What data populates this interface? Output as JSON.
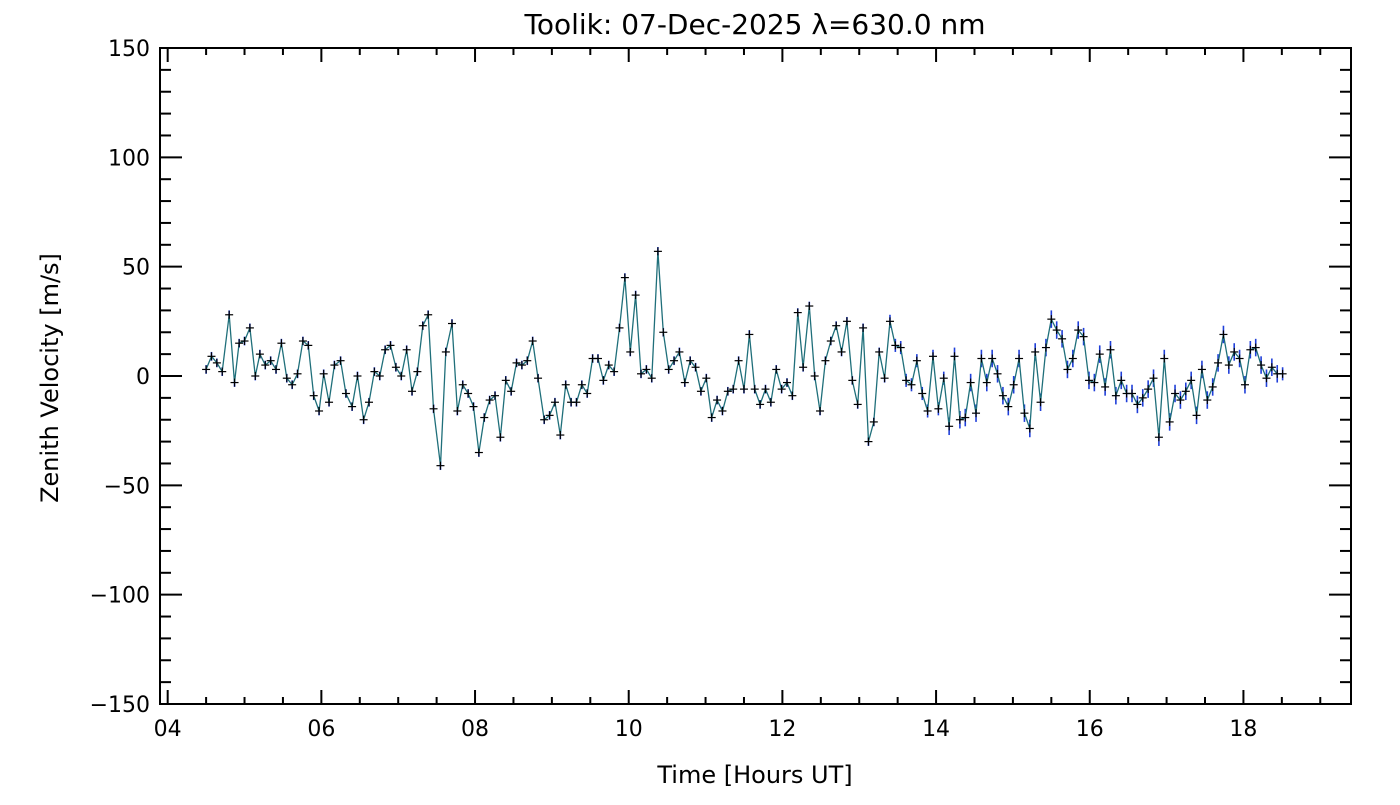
{
  "chart_data": {
    "type": "line",
    "title": "Toolik: 07-Dec-2025 λ=630.0 nm",
    "xlabel": "Time [Hours UT]",
    "ylabel": "Zenith Velocity [m/s]",
    "xlim": [
      3.9,
      19.4
    ],
    "ylim": [
      -150,
      150
    ],
    "x_ticks": [
      4,
      6,
      8,
      10,
      12,
      14,
      16,
      18
    ],
    "x_tick_labels": [
      "04",
      "06",
      "08",
      "10",
      "12",
      "14",
      "16",
      "18"
    ],
    "y_ticks": [
      -150,
      -100,
      -50,
      0,
      50,
      100,
      150
    ],
    "y_tick_labels": [
      "−150",
      "−100",
      "−50",
      "0",
      "50",
      "100",
      "150"
    ],
    "x_minor_step": 0.5,
    "y_minor_step": 10,
    "grid": false,
    "legend": null,
    "colors": {
      "line": "#1f6f7a",
      "markers": "#000000",
      "errors": "#1f3fd9",
      "axes": "#000000"
    },
    "series": [
      {
        "name": "Zenith velocity",
        "values_note": "x in hours UT, y in m/s, err in m/s",
        "points": [
          [
            4.5,
            3,
            2
          ],
          [
            4.57,
            9,
            2
          ],
          [
            4.64,
            6,
            2
          ],
          [
            4.71,
            2,
            2
          ],
          [
            4.8,
            28,
            2
          ],
          [
            4.87,
            -3,
            2
          ],
          [
            4.93,
            15,
            2
          ],
          [
            5.0,
            16,
            2
          ],
          [
            5.07,
            22,
            2
          ],
          [
            5.14,
            0,
            2
          ],
          [
            5.2,
            10,
            2
          ],
          [
            5.27,
            5,
            2
          ],
          [
            5.34,
            7,
            2
          ],
          [
            5.41,
            3,
            2
          ],
          [
            5.48,
            15,
            2
          ],
          [
            5.55,
            -1,
            2
          ],
          [
            5.62,
            -4,
            2
          ],
          [
            5.69,
            1,
            2
          ],
          [
            5.76,
            16,
            2
          ],
          [
            5.83,
            14,
            2
          ],
          [
            5.9,
            -9,
            2
          ],
          [
            5.97,
            -16,
            2
          ],
          [
            6.03,
            1,
            2
          ],
          [
            6.1,
            -12,
            2
          ],
          [
            6.17,
            5,
            2
          ],
          [
            6.25,
            7,
            2
          ],
          [
            6.32,
            -8,
            2
          ],
          [
            6.4,
            -14,
            2
          ],
          [
            6.47,
            0,
            2
          ],
          [
            6.55,
            -20,
            2
          ],
          [
            6.62,
            -12,
            2
          ],
          [
            6.69,
            2,
            2
          ],
          [
            6.76,
            0,
            2
          ],
          [
            6.83,
            12,
            2
          ],
          [
            6.9,
            14,
            2
          ],
          [
            6.97,
            4,
            2
          ],
          [
            7.04,
            0,
            2
          ],
          [
            7.11,
            12,
            2
          ],
          [
            7.18,
            -7,
            2
          ],
          [
            7.25,
            2,
            2
          ],
          [
            7.32,
            23,
            2
          ],
          [
            7.39,
            28,
            2
          ],
          [
            7.46,
            -15,
            2
          ],
          [
            7.55,
            -41,
            2
          ],
          [
            7.62,
            11,
            2
          ],
          [
            7.7,
            24,
            2
          ],
          [
            7.77,
            -16,
            2
          ],
          [
            7.84,
            -4,
            2
          ],
          [
            7.91,
            -8,
            2
          ],
          [
            7.98,
            -14,
            2
          ],
          [
            8.05,
            -35,
            2
          ],
          [
            8.12,
            -19,
            2
          ],
          [
            8.19,
            -11,
            2
          ],
          [
            8.26,
            -9,
            2
          ],
          [
            8.33,
            -28,
            2
          ],
          [
            8.4,
            -2,
            2
          ],
          [
            8.47,
            -7,
            2
          ],
          [
            8.54,
            6,
            2
          ],
          [
            8.61,
            5,
            2
          ],
          [
            8.68,
            7,
            2
          ],
          [
            8.75,
            16,
            2
          ],
          [
            8.82,
            -1,
            2
          ],
          [
            8.9,
            -20,
            2
          ],
          [
            8.97,
            -18,
            2
          ],
          [
            9.04,
            -12,
            2
          ],
          [
            9.11,
            -27,
            2
          ],
          [
            9.18,
            -4,
            2
          ],
          [
            9.25,
            -12,
            2
          ],
          [
            9.32,
            -12,
            2
          ],
          [
            9.39,
            -4,
            2
          ],
          [
            9.46,
            -8,
            2
          ],
          [
            9.53,
            8,
            2
          ],
          [
            9.6,
            8,
            2
          ],
          [
            9.67,
            -2,
            2
          ],
          [
            9.74,
            5,
            2
          ],
          [
            9.81,
            2,
            2
          ],
          [
            9.88,
            22,
            2
          ],
          [
            9.95,
            45,
            2
          ],
          [
            10.02,
            11,
            2
          ],
          [
            10.09,
            37,
            2
          ],
          [
            10.16,
            1,
            2
          ],
          [
            10.23,
            3,
            2
          ],
          [
            10.3,
            -1,
            2
          ],
          [
            10.38,
            57,
            2
          ],
          [
            10.45,
            20,
            2
          ],
          [
            10.52,
            3,
            2
          ],
          [
            10.59,
            7,
            2
          ],
          [
            10.66,
            11,
            2
          ],
          [
            10.73,
            -3,
            2
          ],
          [
            10.8,
            7,
            2
          ],
          [
            10.87,
            4,
            2
          ],
          [
            10.94,
            -7,
            2
          ],
          [
            11.01,
            -1,
            2
          ],
          [
            11.08,
            -19,
            2
          ],
          [
            11.15,
            -11,
            2
          ],
          [
            11.22,
            -16,
            2
          ],
          [
            11.29,
            -7,
            2
          ],
          [
            11.36,
            -6,
            2
          ],
          [
            11.43,
            7,
            2
          ],
          [
            11.5,
            -6,
            2
          ],
          [
            11.57,
            19,
            2
          ],
          [
            11.64,
            -6,
            2
          ],
          [
            11.71,
            -13,
            2
          ],
          [
            11.78,
            -6,
            2
          ],
          [
            11.85,
            -12,
            2
          ],
          [
            11.92,
            3,
            2
          ],
          [
            11.99,
            -6,
            2
          ],
          [
            12.06,
            -3,
            2
          ],
          [
            12.13,
            -9,
            2
          ],
          [
            12.2,
            29,
            2
          ],
          [
            12.27,
            4,
            2
          ],
          [
            12.35,
            32,
            2
          ],
          [
            12.42,
            0,
            2
          ],
          [
            12.49,
            -16,
            2
          ],
          [
            12.56,
            7,
            2
          ],
          [
            12.63,
            16,
            2
          ],
          [
            12.7,
            23,
            2
          ],
          [
            12.77,
            11,
            2
          ],
          [
            12.84,
            25,
            2
          ],
          [
            12.91,
            -2,
            2
          ],
          [
            12.98,
            -13,
            2
          ],
          [
            13.05,
            22,
            2
          ],
          [
            13.12,
            -30,
            2
          ],
          [
            13.19,
            -21,
            2
          ],
          [
            13.26,
            11,
            2
          ],
          [
            13.33,
            -1,
            2
          ],
          [
            13.4,
            25,
            3
          ],
          [
            13.47,
            14,
            3
          ],
          [
            13.54,
            13,
            3
          ],
          [
            13.61,
            -2,
            3
          ],
          [
            13.68,
            -4,
            3
          ],
          [
            13.75,
            7,
            3
          ],
          [
            13.82,
            -8,
            3
          ],
          [
            13.89,
            -16,
            3
          ],
          [
            13.96,
            9,
            3
          ],
          [
            14.03,
            -15,
            3
          ],
          [
            14.1,
            -1,
            3
          ],
          [
            14.17,
            -23,
            4
          ],
          [
            14.24,
            9,
            4
          ],
          [
            14.31,
            -20,
            4
          ],
          [
            14.38,
            -19,
            4
          ],
          [
            14.45,
            -3,
            4
          ],
          [
            14.52,
            -17,
            4
          ],
          [
            14.59,
            8,
            4
          ],
          [
            14.66,
            -3,
            4
          ],
          [
            14.73,
            8,
            4
          ],
          [
            14.8,
            1,
            4
          ],
          [
            14.87,
            -9,
            4
          ],
          [
            14.94,
            -14,
            4
          ],
          [
            15.01,
            -4,
            4
          ],
          [
            15.08,
            8,
            4
          ],
          [
            15.15,
            -17,
            4
          ],
          [
            15.22,
            -24,
            4
          ],
          [
            15.29,
            11,
            4
          ],
          [
            15.36,
            -12,
            4
          ],
          [
            15.43,
            13,
            4
          ],
          [
            15.5,
            26,
            4
          ],
          [
            15.57,
            21,
            4
          ],
          [
            15.64,
            17,
            4
          ],
          [
            15.71,
            3,
            4
          ],
          [
            15.78,
            8,
            4
          ],
          [
            15.85,
            21,
            4
          ],
          [
            15.92,
            18,
            4
          ],
          [
            15.99,
            -2,
            4
          ],
          [
            16.06,
            -3,
            4
          ],
          [
            16.13,
            10,
            4
          ],
          [
            16.2,
            -5,
            4
          ],
          [
            16.27,
            12,
            4
          ],
          [
            16.34,
            -9,
            4
          ],
          [
            16.41,
            -2,
            4
          ],
          [
            16.48,
            -8,
            4
          ],
          [
            16.55,
            -8,
            4
          ],
          [
            16.62,
            -13,
            4
          ],
          [
            16.69,
            -10,
            4
          ],
          [
            16.76,
            -6,
            4
          ],
          [
            16.83,
            -1,
            4
          ],
          [
            16.9,
            -28,
            4
          ],
          [
            16.97,
            8,
            4
          ],
          [
            17.04,
            -21,
            4
          ],
          [
            17.11,
            -8,
            4
          ],
          [
            17.18,
            -11,
            4
          ],
          [
            17.25,
            -7,
            4
          ],
          [
            17.32,
            -2,
            4
          ],
          [
            17.39,
            -18,
            4
          ],
          [
            17.46,
            3,
            4
          ],
          [
            17.53,
            -11,
            4
          ],
          [
            17.6,
            -5,
            4
          ],
          [
            17.67,
            6,
            4
          ],
          [
            17.74,
            19,
            4
          ],
          [
            17.81,
            5,
            4
          ],
          [
            17.88,
            11,
            4
          ],
          [
            17.95,
            8,
            4
          ],
          [
            18.02,
            -4,
            4
          ],
          [
            18.09,
            12,
            4
          ],
          [
            18.16,
            13,
            4
          ],
          [
            18.23,
            5,
            4
          ],
          [
            18.3,
            -1,
            4
          ],
          [
            18.37,
            4,
            4
          ],
          [
            18.44,
            1,
            4
          ],
          [
            18.51,
            1,
            3
          ]
        ]
      }
    ]
  }
}
